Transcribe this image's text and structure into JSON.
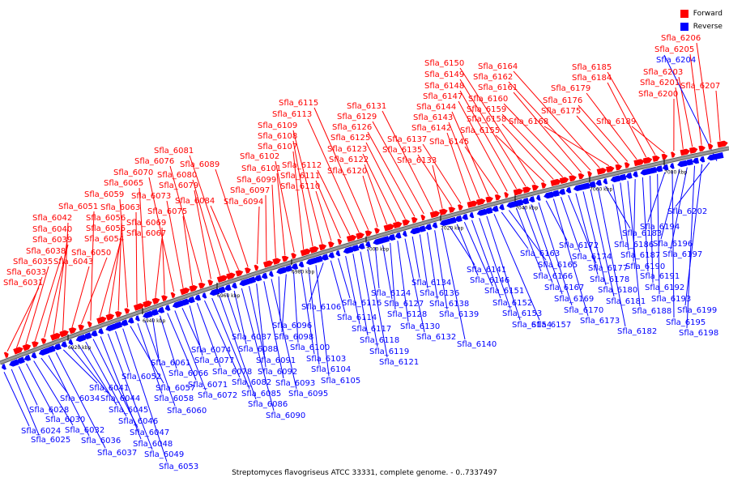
{
  "colors": {
    "forward": "#ff0000",
    "reverse": "#0000ff",
    "backbone": "#9a9a9a",
    "line_forward": "#ff0000",
    "line_reverse": "#0000ff"
  },
  "legend": {
    "forward_label": "Forward",
    "reverse_label": "Reverse"
  },
  "caption": "Streptomyces flavogriseus ATCC 33331, complete genome. - 0..7337497",
  "ticks": [
    "6920 kbp",
    "6940 kbp",
    "6960 kbp",
    "6980 kbp",
    "7000 kbp",
    "7020 kbp",
    "7040 kbp",
    "7060 kbp",
    "7080 kbp"
  ],
  "forward_genes": [
    "Sfla_6031",
    "Sfla_6033",
    "Sfla_6035",
    "Sfla_6038",
    "Sfla_6039",
    "Sfla_6040",
    "Sfla_6042",
    "Sfla_6043",
    "Sfla_6050",
    "Sfla_6051",
    "Sfla_6054",
    "Sfla_6055",
    "Sfla_6056",
    "Sfla_6059",
    "Sfla_6063",
    "Sfla_6065",
    "Sfla_6067",
    "Sfla_6069",
    "Sfla_6070",
    "Sfla_6073",
    "Sfla_6075",
    "Sfla_6076",
    "Sfla_6079",
    "Sfla_6080",
    "Sfla_6081",
    "Sfla_6084",
    "Sfla_6089",
    "Sfla_6094",
    "Sfla_6097",
    "Sfla_6099",
    "Sfla_6101",
    "Sfla_6102",
    "Sfla_6107",
    "Sfla_6108",
    "Sfla_6109",
    "Sfla_6110",
    "Sfla_6111",
    "Sfla_6112",
    "Sfla_6113",
    "Sfla_6115",
    "Sfla_6120",
    "Sfla_6122",
    "Sfla_6123",
    "Sfla_6125",
    "Sfla_6126",
    "Sfla_6129",
    "Sfla_6131",
    "Sfla_6133",
    "Sfla_6135",
    "Sfla_6137",
    "Sfla_6142",
    "Sfla_6143",
    "Sfla_6144",
    "Sfla_6145",
    "Sfla_6147",
    "Sfla_6148",
    "Sfla_6149",
    "Sfla_6150",
    "Sfla_6155",
    "Sfla_6158",
    "Sfla_6159",
    "Sfla_6160",
    "Sfla_6161",
    "Sfla_6162",
    "Sfla_6164",
    "Sfla_6168",
    "Sfla_6175",
    "Sfla_6176",
    "Sfla_6179",
    "Sfla_6184",
    "Sfla_6185",
    "Sfla_6189",
    "Sfla_6200",
    "Sfla_6201",
    "Sfla_6203",
    "Sfla_6205",
    "Sfla_6206",
    "Sfla_6207"
  ],
  "reverse_genes": [
    "Sfla_6024",
    "Sfla_6025",
    "Sfla_6028",
    "Sfla_6030",
    "Sfla_6032",
    "Sfla_6034",
    "Sfla_6036",
    "Sfla_6037",
    "Sfla_6041",
    "Sfla_6044",
    "Sfla_6045",
    "Sfla_6046",
    "Sfla_6047",
    "Sfla_6048",
    "Sfla_6049",
    "Sfla_6052",
    "Sfla_6053",
    "Sfla_6057",
    "Sfla_6058",
    "Sfla_6060",
    "Sfla_6061",
    "Sfla_6066",
    "Sfla_6071",
    "Sfla_6072",
    "Sfla_6074",
    "Sfla_6077",
    "Sfla_6078",
    "Sfla_6082",
    "Sfla_6085",
    "Sfla_6086",
    "Sfla_6087",
    "Sfla_6088",
    "Sfla_6090",
    "Sfla_6091",
    "Sfla_6092",
    "Sfla_6093",
    "Sfla_6095",
    "Sfla_6096",
    "Sfla_6098",
    "Sfla_6100",
    "Sfla_6103",
    "Sfla_6104",
    "Sfla_6105",
    "Sfla_6106",
    "Sfla_6114",
    "Sfla_6116",
    "Sfla_6117",
    "Sfla_6118",
    "Sfla_6119",
    "Sfla_6121",
    "Sfla_6124",
    "Sfla_6127",
    "Sfla_6128",
    "Sfla_6130",
    "Sfla_6132",
    "Sfla_6134",
    "Sfla_6136",
    "Sfla_6138",
    "Sfla_6139",
    "Sfla_6140",
    "Sfla_6141",
    "Sfla_6146",
    "Sfla_6151",
    "Sfla_6152",
    "Sfla_6153",
    "Sfla_6154",
    "Sfla_6157",
    "Sfla_6163",
    "Sfla_6165",
    "Sfla_6166",
    "Sfla_6167",
    "Sfla_6169",
    "Sfla_6170",
    "Sfla_6172",
    "Sfla_6173",
    "Sfla_6174",
    "Sfla_6177",
    "Sfla_6178",
    "Sfla_6180",
    "Sfla_6181",
    "Sfla_6182",
    "Sfla_6183",
    "Sfla_6186",
    "Sfla_6187",
    "Sfla_6188",
    "Sfla_6190",
    "Sfla_6191",
    "Sfla_6192",
    "Sfla_6193",
    "Sfla_6194",
    "Sfla_6195",
    "Sfla_6196",
    "Sfla_6197",
    "Sfla_6198",
    "Sfla_6199",
    "Sfla_6202",
    "Sfla_6204"
  ]
}
